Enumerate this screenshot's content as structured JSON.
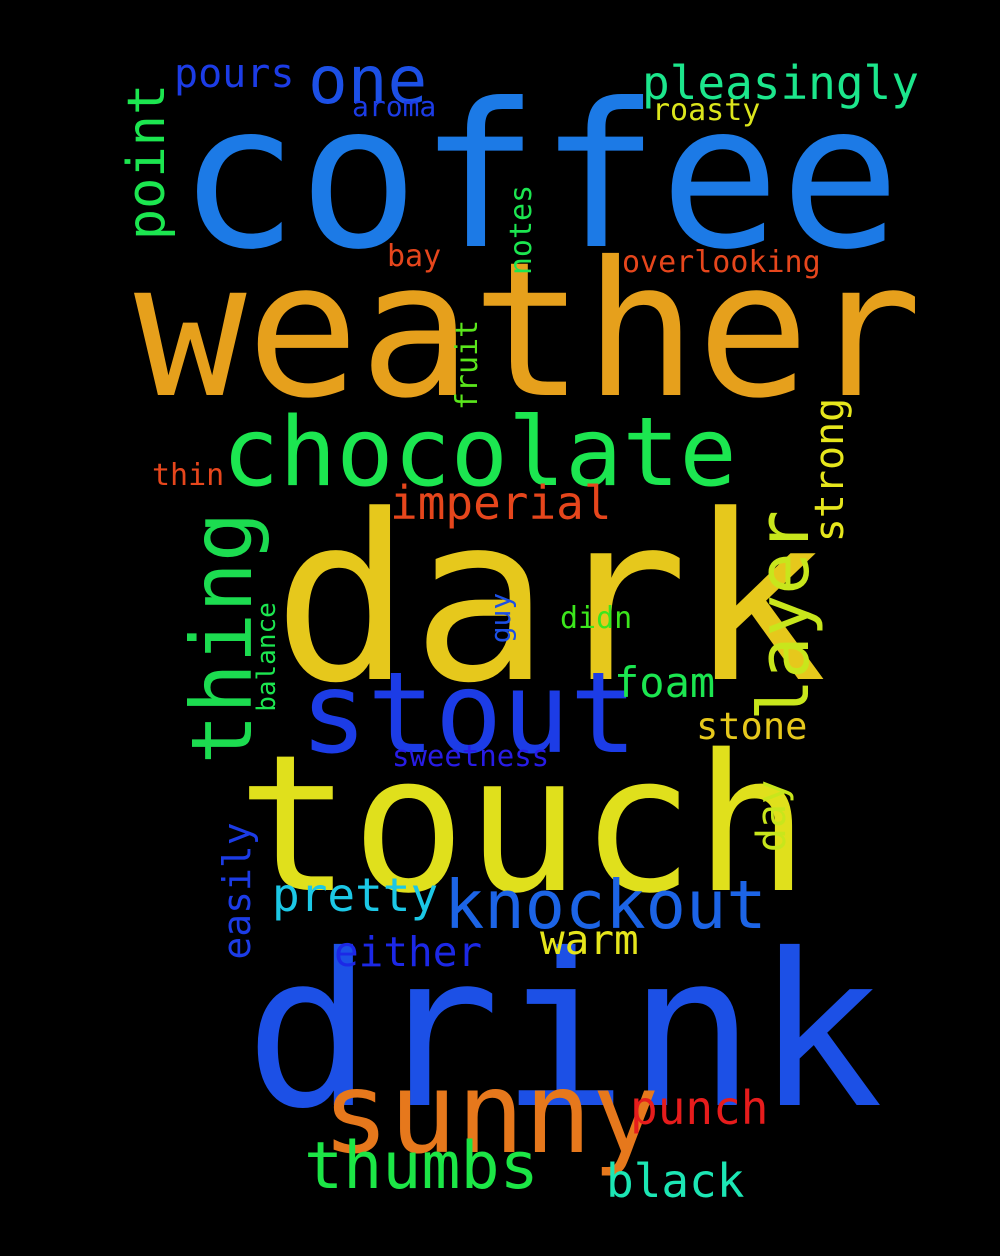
{
  "words": {
    "coffee": "coffee",
    "weather": "weather",
    "dark": "dark",
    "touch": "touch",
    "drink": "drink",
    "chocolate": "chocolate",
    "stout": "stout",
    "sunny": "sunny",
    "knockout": "knockout",
    "thing": "thing",
    "layer": "layer",
    "one": "one",
    "point": "point",
    "thumbs": "thumbs",
    "pleasingly": "pleasingly",
    "pours": "pours",
    "imperial": "imperial",
    "foam": "foam",
    "pretty": "pretty",
    "punch": "punch",
    "black": "black",
    "warm": "warm",
    "stone": "stone",
    "either": "either",
    "strong": "strong",
    "overlooking": "overlooking",
    "notes": "notes",
    "fruit": "fruit",
    "bay": "bay",
    "roasty": "roasty",
    "aroma": "aroma",
    "thin": "thin",
    "didn": "didn",
    "guy": "guy",
    "balance": "balance",
    "sweetness": "sweetness",
    "day": "day",
    "easily": "easily"
  },
  "colors": {
    "background": "#000000",
    "coffee": "#1c7ae6",
    "weather": "#e6a01c",
    "dark": "#e6c81c",
    "touch": "#e0e01c",
    "drink": "#1c50e6",
    "chocolate": "#1ce650",
    "stout": "#1c3ce6",
    "sunny": "#e6781c",
    "knockout": "#1c64e6",
    "thing": "#1cdc50",
    "layer": "#c8e61c",
    "one": "#1c50e6",
    "point": "#1ce650",
    "thumbs": "#1ce646",
    "pleasingly": "#1ce68c",
    "pours": "#1c3ce6",
    "imperial": "#e6461c",
    "foam": "#1ce650",
    "pretty": "#1cc8e6",
    "punch": "#e61c1c",
    "black": "#1ce6b4",
    "warm": "#e6e61c",
    "stone": "#e6c81c",
    "either": "#1c28e6",
    "strong": "#e6e61c",
    "overlooking": "#e6461c",
    "notes": "#1ce650",
    "fruit": "#5ae61c",
    "bay": "#e6461c",
    "roasty": "#dce61c",
    "aroma": "#1c3ce6",
    "thin": "#e6461c",
    "didn": "#3ce61c",
    "guy": "#1c50e6",
    "balance": "#1ce650",
    "sweetness": "#281ce6",
    "day": "#c8e61c",
    "easily": "#1c3ce6"
  }
}
